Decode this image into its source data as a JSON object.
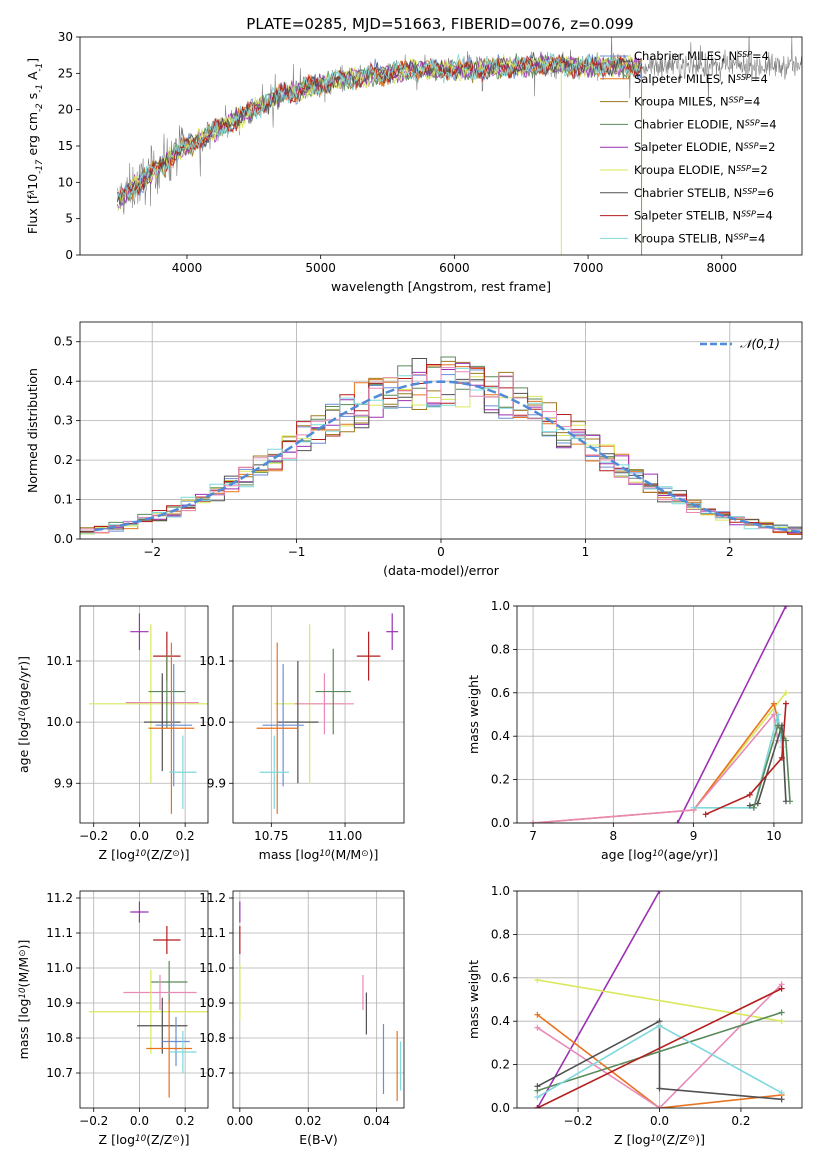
{
  "figure": {
    "title": "PLATE=0285, MJD=51663, FIBERID=0076, z=0.099"
  },
  "colors": {
    "Chabrier MILES": "#6a8fd6",
    "Salpeter MILES": "#e8731e",
    "Kroupa MILES": "#a07a20",
    "Chabrier ELODIE": "#5a8a5a",
    "Salpeter ELODIE": "#9b30b4",
    "Kroupa ELODIE": "#d9e85a",
    "Chabrier STELIB": "#505050",
    "Salpeter STELIB": "#b41e1e",
    "Kroupa STELIB": "#7fd8dc",
    "Pink": "#e88ab8",
    "Observed": "#808080",
    "Normal": "#4f8bd6"
  },
  "chart_data": [
    {
      "id": "spectrum",
      "type": "line",
      "title": "PLATE=0285, MJD=51663, FIBERID=0076, z=0.099",
      "xlabel": "wavelength [Angstrom, rest frame]",
      "ylabel": "Flux [f$_\\lambda$10$^{-17}$ erg cm$^{-2}$ s$^{-1}$ A$^{-1}$]",
      "xlim": [
        3200,
        8600
      ],
      "ylim": [
        0,
        30
      ],
      "xticks": [
        4000,
        5000,
        6000,
        7000,
        8000
      ],
      "yticks": [
        0,
        5,
        10,
        15,
        20,
        25,
        30
      ],
      "grid": false,
      "legend_position": "top-right",
      "continuum": {
        "x": [
          3480,
          3550,
          3650,
          3750,
          3850,
          3950,
          4050,
          4150,
          4300,
          4500,
          4700,
          4900,
          5100,
          5300,
          5500,
          5700,
          5900,
          6100,
          6300,
          6500,
          6700,
          6900,
          7100,
          7300,
          7400
        ],
        "y": [
          7.5,
          8.5,
          10.0,
          11.5,
          13.0,
          14.5,
          15.5,
          16.5,
          18.0,
          20.0,
          22.0,
          23.0,
          24.0,
          24.5,
          25.0,
          25.5,
          25.5,
          25.5,
          25.8,
          26.0,
          26.2,
          26.0,
          26.0,
          26.0,
          26.0
        ]
      },
      "spike_lines": [
        {
          "x": 6800,
          "y_from": 0,
          "y_to": 27,
          "series": "Kroupa ELODIE"
        },
        {
          "x": 7400,
          "y_from": 0,
          "y_to": 27,
          "series": "Salpeter MILES"
        }
      ],
      "series": [
        {
          "name": "Chabrier MILES, N$_{SSP}$=4"
        },
        {
          "name": "Salpeter MILES, N$_{SSP}$=4"
        },
        {
          "name": "Kroupa MILES, N$_{SSP}$=4"
        },
        {
          "name": "Chabrier ELODIE, N$_{SSP}$=4"
        },
        {
          "name": "Salpeter ELODIE, N$_{SSP}$=2"
        },
        {
          "name": "Kroupa ELODIE, N$_{SSP}$=2"
        },
        {
          "name": "Chabrier STELIB, N$_{SSP}$=6"
        },
        {
          "name": "Salpeter STELIB, N$_{SSP}$=4"
        },
        {
          "name": "Kroupa STELIB, N$_{SSP}$=4"
        }
      ]
    },
    {
      "id": "residuals",
      "type": "line",
      "xlabel": "(data-model)/error",
      "ylabel": "Normed distribution",
      "xlim": [
        -2.5,
        2.5
      ],
      "ylim": [
        0,
        0.55
      ],
      "xticks": [
        -2,
        -1,
        0,
        1,
        2
      ],
      "yticks": [
        0.0,
        0.1,
        0.2,
        0.3,
        0.4,
        0.5
      ],
      "grid": true,
      "legend_position": "top-right",
      "legend": "$\\mathcal{N}(0,1)$",
      "bin_width": 0.1,
      "series_colors": [
        "#6a8fd6",
        "#e8731e",
        "#a07a20",
        "#5a8a5a",
        "#9b30b4",
        "#d9e85a",
        "#505050",
        "#b41e1e",
        "#7fd8dc",
        "#e88ab8"
      ]
    },
    {
      "id": "z_age",
      "type": "scatter",
      "xlabel": "Z [log$_{10}$(Z/Z$_\\odot$)]",
      "ylabel": "age  [log$_{10}$(age/yr)]",
      "xlim": [
        -0.26,
        0.3
      ],
      "ylim": [
        9.835,
        10.19
      ],
      "xticks": [
        -0.2,
        0.0,
        0.2
      ],
      "yticks": [
        9.9,
        10.0,
        10.1
      ],
      "grid": true,
      "points": [
        {
          "series": "Salpeter ELODIE",
          "x": 0.0,
          "xerr": 0.04,
          "y": 10.148,
          "yerr": 0.03
        },
        {
          "series": "Salpeter STELIB",
          "x": 0.12,
          "xerr": 0.06,
          "y": 10.108,
          "yerr": 0.04
        },
        {
          "series": "Kroupa ELODIE",
          "x": 0.05,
          "xerr": 0.27,
          "y": 10.03,
          "yerr": 0.13
        },
        {
          "series": "Pink",
          "x": 0.1,
          "xerr": 0.16,
          "y": 10.032,
          "yerr": 0.04
        },
        {
          "series": "Chabrier ELODIE",
          "x": 0.12,
          "xerr": 0.08,
          "y": 10.05,
          "yerr": 0.06
        },
        {
          "series": "Chabrier STELIB",
          "x": 0.1,
          "xerr": 0.08,
          "y": 10.0,
          "yerr": 0.08
        },
        {
          "series": "Chabrier MILES",
          "x": 0.15,
          "xerr": 0.08,
          "y": 9.995,
          "yerr": 0.1
        },
        {
          "series": "Salpeter MILES",
          "x": 0.14,
          "xerr": 0.1,
          "y": 9.99,
          "yerr": 0.14
        },
        {
          "series": "Kroupa STELIB",
          "x": 0.19,
          "xerr": 0.06,
          "y": 9.918,
          "yerr": 0.06
        }
      ]
    },
    {
      "id": "mass_age",
      "type": "scatter",
      "xlabel": "mass [log$_{10}$(M/M$_\\odot$)]",
      "ylabel": "",
      "xlim": [
        10.62,
        11.2
      ],
      "ylim": [
        9.835,
        10.19
      ],
      "xticks": [
        10.75,
        11.0
      ],
      "yticks": [
        9.9,
        10.0,
        10.1
      ],
      "grid": true,
      "points": [
        {
          "series": "Salpeter ELODIE",
          "x": 11.16,
          "xerr": 0.02,
          "y": 10.148,
          "yerr": 0.03
        },
        {
          "series": "Salpeter STELIB",
          "x": 11.08,
          "xerr": 0.04,
          "y": 10.108,
          "yerr": 0.04
        },
        {
          "series": "Kroupa ELODIE",
          "x": 10.88,
          "xerr": 0.12,
          "y": 10.03,
          "yerr": 0.13
        },
        {
          "series": "Pink",
          "x": 10.93,
          "xerr": 0.1,
          "y": 10.03,
          "yerr": 0.05
        },
        {
          "series": "Chabrier ELODIE",
          "x": 10.96,
          "xerr": 0.06,
          "y": 10.05,
          "yerr": 0.07
        },
        {
          "series": "Chabrier STELIB",
          "x": 10.84,
          "xerr": 0.07,
          "y": 10.0,
          "yerr": 0.1
        },
        {
          "series": "Chabrier MILES",
          "x": 10.79,
          "xerr": 0.07,
          "y": 9.995,
          "yerr": 0.1
        },
        {
          "series": "Salpeter MILES",
          "x": 10.77,
          "xerr": 0.07,
          "y": 9.99,
          "yerr": 0.14
        },
        {
          "series": "Kroupa STELIB",
          "x": 10.76,
          "xerr": 0.05,
          "y": 9.918,
          "yerr": 0.06
        }
      ]
    },
    {
      "id": "age_weight",
      "type": "line",
      "xlabel": "age  [log$_{10}$(age/yr)]",
      "ylabel": "mass weight",
      "xlim": [
        6.8,
        10.35
      ],
      "ylim": [
        0,
        1.0
      ],
      "xticks": [
        7,
        8,
        9,
        10
      ],
      "yticks": [
        0.0,
        0.2,
        0.4,
        0.6,
        0.8,
        1.0
      ],
      "grid": true,
      "series": [
        {
          "name": "Salpeter ELODIE",
          "x": [
            8.8,
            10.15
          ],
          "y": [
            0.0,
            1.0
          ]
        },
        {
          "name": "Kroupa ELODIE",
          "x": [
            9.0,
            10.15
          ],
          "y": [
            0.06,
            0.6
          ]
        },
        {
          "name": "Salpeter MILES",
          "x": [
            7.0,
            9.0,
            10.0,
            10.1
          ],
          "y": [
            0.0,
            0.06,
            0.55,
            0.4
          ]
        },
        {
          "name": "Pink",
          "x": [
            7.0,
            9.0,
            10.0,
            10.05
          ],
          "y": [
            0.0,
            0.06,
            0.5,
            0.38
          ]
        },
        {
          "name": "Kroupa STELIB",
          "x": [
            9.0,
            9.75,
            10.05,
            10.1
          ],
          "y": [
            0.07,
            0.07,
            0.5,
            0.35
          ]
        },
        {
          "name": "Chabrier STELIB",
          "x": [
            9.7,
            9.8,
            10.1,
            10.15
          ],
          "y": [
            0.08,
            0.09,
            0.45,
            0.1
          ]
        },
        {
          "name": "Chabrier ELODIE",
          "x": [
            9.75,
            10.05,
            10.15,
            10.2
          ],
          "y": [
            0.07,
            0.45,
            0.38,
            0.1
          ]
        },
        {
          "name": "Salpeter STELIB",
          "x": [
            9.15,
            9.7,
            10.1,
            10.15
          ],
          "y": [
            0.04,
            0.13,
            0.3,
            0.55
          ]
        }
      ]
    },
    {
      "id": "z_mass",
      "type": "scatter",
      "xlabel": "Z [log$_{10}$(Z/Z$_\\odot$)]",
      "ylabel": "mass [log$_{10}$(M/M$_\\odot$)]",
      "xlim": [
        -0.26,
        0.3
      ],
      "ylim": [
        10.6,
        11.22
      ],
      "xticks": [
        -0.2,
        0.0,
        0.2
      ],
      "yticks": [
        10.7,
        10.8,
        10.9,
        11.0,
        11.1,
        11.2
      ],
      "grid": true,
      "points": [
        {
          "series": "Salpeter ELODIE",
          "x": 0.0,
          "xerr": 0.04,
          "y": 11.16,
          "yerr": 0.03
        },
        {
          "series": "Salpeter STELIB",
          "x": 0.12,
          "xerr": 0.06,
          "y": 11.08,
          "yerr": 0.04
        },
        {
          "series": "Chabrier ELODIE",
          "x": 0.13,
          "xerr": 0.08,
          "y": 10.96,
          "yerr": 0.06
        },
        {
          "series": "Pink",
          "x": 0.09,
          "xerr": 0.16,
          "y": 10.93,
          "yerr": 0.05
        },
        {
          "series": "Kroupa ELODIE",
          "x": 0.05,
          "xerr": 0.27,
          "y": 10.875,
          "yerr": 0.12
        },
        {
          "series": "Chabrier STELIB",
          "x": 0.1,
          "xerr": 0.11,
          "y": 10.835,
          "yerr": 0.08
        },
        {
          "series": "Chabrier MILES",
          "x": 0.16,
          "xerr": 0.06,
          "y": 10.79,
          "yerr": 0.07
        },
        {
          "series": "Salpeter MILES",
          "x": 0.13,
          "xerr": 0.1,
          "y": 10.77,
          "yerr": 0.14
        },
        {
          "series": "Kroupa STELIB",
          "x": 0.19,
          "xerr": 0.06,
          "y": 10.76,
          "yerr": 0.06
        }
      ]
    },
    {
      "id": "ebv_mass",
      "type": "scatter",
      "xlabel": "E(B-V)",
      "ylabel": "",
      "xlim": [
        -0.002,
        0.048
      ],
      "ylim": [
        10.6,
        11.22
      ],
      "xticks": [
        0.0,
        0.02,
        0.04
      ],
      "yticks": [
        10.7,
        10.8,
        10.9,
        11.0,
        11.1,
        11.2
      ],
      "grid": true,
      "points": [
        {
          "series": "Salpeter ELODIE",
          "x": 0.0,
          "y": 11.16,
          "yerr": 0.03
        },
        {
          "series": "Salpeter STELIB",
          "x": 0.0,
          "y": 11.08,
          "yerr": 0.04
        },
        {
          "series": "Kroupa ELODIE",
          "x": 0.0,
          "y": 10.93,
          "yerr": 0.08
        },
        {
          "series": "Pink",
          "x": 0.036,
          "y": 10.93,
          "yerr": 0.05
        },
        {
          "series": "Chabrier STELIB",
          "x": 0.037,
          "y": 10.87,
          "yerr": 0.06
        },
        {
          "series": "Chabrier MILES",
          "x": 0.042,
          "y": 10.74,
          "yerr": 0.1
        },
        {
          "series": "Salpeter MILES",
          "x": 0.046,
          "y": 10.72,
          "yerr": 0.1
        },
        {
          "series": "Kroupa STELIB",
          "x": 0.047,
          "y": 10.72,
          "yerr": 0.07
        }
      ]
    },
    {
      "id": "z_weight",
      "type": "line",
      "xlabel": "Z [log$_{10}$(Z/Z$_\\odot$)]",
      "ylabel": "mass weight",
      "xlim": [
        -0.35,
        0.35
      ],
      "ylim": [
        0,
        1.0
      ],
      "xticks": [
        -0.2,
        0.0,
        0.2
      ],
      "yticks": [
        0.0,
        0.2,
        0.4,
        0.6,
        0.8,
        1.0
      ],
      "grid": true,
      "series": [
        {
          "name": "Salpeter ELODIE",
          "x": [
            -0.3,
            0.0
          ],
          "y": [
            0.0,
            1.0
          ]
        },
        {
          "name": "Kroupa ELODIE",
          "x": [
            -0.3,
            0.3
          ],
          "y": [
            0.59,
            0.4
          ]
        },
        {
          "name": "Salpeter MILES",
          "x": [
            -0.3,
            0.0,
            0.3
          ],
          "y": [
            0.43,
            0.0,
            0.06
          ]
        },
        {
          "name": "Pink",
          "x": [
            -0.3,
            0.0,
            0.3
          ],
          "y": [
            0.37,
            0.0,
            0.57
          ]
        },
        {
          "name": "Chabrier STELIB",
          "x": [
            -0.3,
            0.0,
            0.0,
            0.3
          ],
          "y": [
            0.1,
            0.4,
            0.09,
            0.04
          ]
        },
        {
          "name": "Chabrier ELODIE",
          "x": [
            -0.3,
            0.3
          ],
          "y": [
            0.08,
            0.44
          ]
        },
        {
          "name": "Kroupa STELIB",
          "x": [
            -0.3,
            0.0,
            0.3
          ],
          "y": [
            0.05,
            0.38,
            0.07
          ]
        },
        {
          "name": "Salpeter STELIB",
          "x": [
            -0.3,
            0.3
          ],
          "y": [
            0.0,
            0.55
          ]
        }
      ]
    }
  ]
}
